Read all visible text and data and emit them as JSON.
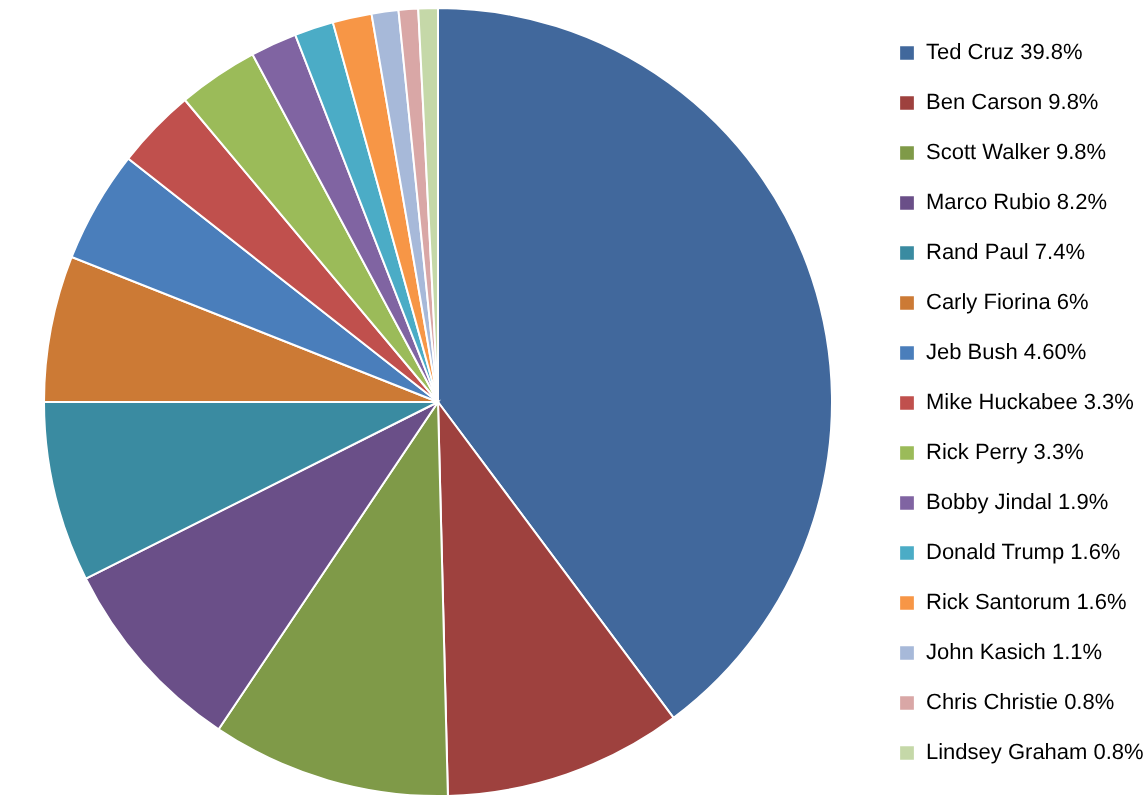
{
  "chart_data": {
    "type": "pie",
    "categories": [
      "Ted Cruz 39.8%",
      "Ben Carson 9.8%",
      "Scott Walker 9.8%",
      "Marco Rubio 8.2%",
      "Rand Paul 7.4%",
      "Carly Fiorina 6%",
      "Jeb Bush 4.60%",
      "Mike Huckabee 3.3%",
      "Rick Perry 3.3%",
      "Bobby Jindal 1.9%",
      "Donald Trump 1.6%",
      "Rick Santorum 1.6%",
      "John Kasich 1.1%",
      "Chris Christie 0.8%",
      "Lindsey Graham 0.8%"
    ],
    "values": [
      39.8,
      9.8,
      9.8,
      8.2,
      7.4,
      6,
      4.6,
      3.3,
      3.3,
      1.9,
      1.6,
      1.6,
      1.1,
      0.8,
      0.8
    ],
    "colors": [
      "#41689c",
      "#9e413e",
      "#7f9a48",
      "#6a4f88",
      "#3a8ba1",
      "#cc7a35",
      "#4a7ebb",
      "#c0504d",
      "#9bbb59",
      "#8064a2",
      "#4bacc6",
      "#f79646",
      "#a7b9d9",
      "#d9a7a6",
      "#c5d8a8"
    ],
    "legend": "right"
  }
}
